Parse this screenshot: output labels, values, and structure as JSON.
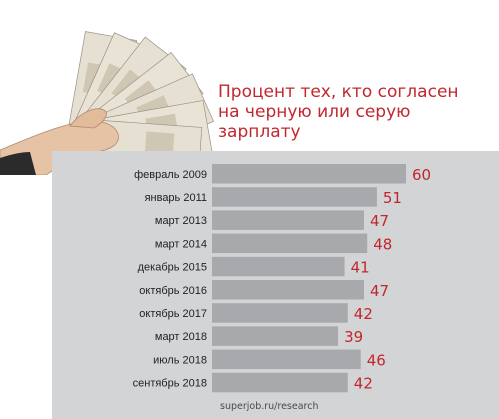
{
  "title": {
    "line1": "Процент тех, кто согласен",
    "line2": "на черную или серую зарплату"
  },
  "source": "superjob.ru/research",
  "colors": {
    "title": "#c1272d",
    "bar": "#a7a9ac",
    "value_label": "#c1272d",
    "panel": "#d3d4d6"
  },
  "illustration": "hand-holding-fan-of-banknotes",
  "chart_data": {
    "type": "bar",
    "orientation": "horizontal",
    "categories": [
      "февраль 2009",
      "январь 2011",
      "март 2013",
      "март 2014",
      "декабрь 2015",
      "октябрь 2016",
      "октябрь 2017",
      "март 2018",
      "июль 2018",
      "сентябрь 2018"
    ],
    "values": [
      60,
      51,
      47,
      48,
      41,
      47,
      42,
      39,
      46,
      42
    ],
    "xlim": [
      0,
      60
    ],
    "grid": false
  }
}
